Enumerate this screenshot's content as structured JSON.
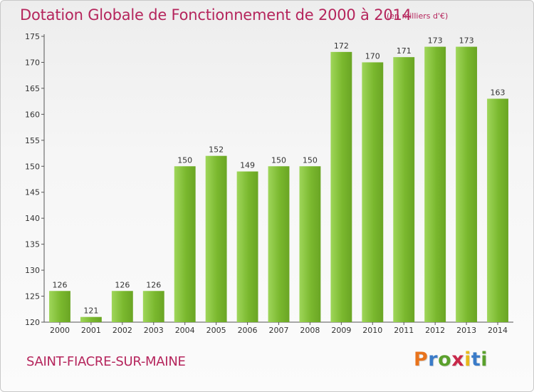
{
  "title": "Dotation Globale de Fonctionnement de 2000 à 2014",
  "subtitle": "(en milliers d'€)",
  "city": "SAINT-FIACRE-SUR-MAINE",
  "logo": {
    "letters": [
      "P",
      "r",
      "o",
      "x",
      "i",
      "t",
      "i"
    ],
    "colors": [
      "#e8731c",
      "#3a7bc8",
      "#5aa02c",
      "#c8284a",
      "#e8b81c",
      "#3a7bc8",
      "#5aa02c"
    ]
  },
  "colors": {
    "bar": "#7ab82e",
    "bar_light": "#9fd65a",
    "title": "#b5255c"
  },
  "chart_data": {
    "type": "bar",
    "categories": [
      "2000",
      "2001",
      "2002",
      "2003",
      "2004",
      "2005",
      "2006",
      "2007",
      "2008",
      "2009",
      "2010",
      "2011",
      "2012",
      "2013",
      "2014"
    ],
    "values": [
      126,
      121,
      126,
      126,
      150,
      152,
      149,
      150,
      150,
      172,
      170,
      171,
      173,
      173,
      163
    ],
    "title": "Dotation Globale de Fonctionnement de 2000 à 2014",
    "xlabel": "",
    "ylabel": "",
    "ylim": [
      120,
      175
    ],
    "yticks": [
      120,
      125,
      130,
      135,
      140,
      145,
      150,
      155,
      160,
      165,
      170,
      175
    ],
    "grid": false,
    "legend": "none"
  }
}
